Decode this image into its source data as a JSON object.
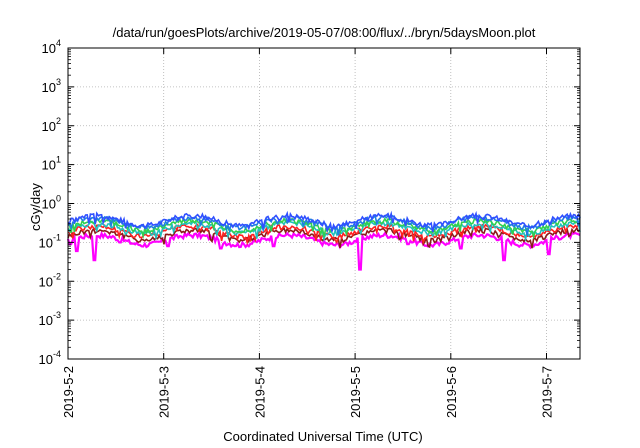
{
  "chart_data": {
    "type": "line",
    "title": "/data/run/goesPlots/archive/2019-05-07/08:00/flux/../bryn/5daysMoon.plot",
    "xlabel": "Coordinated Universal Time (UTC)",
    "ylabel": "cGy/day",
    "yscale": "log",
    "ylim": [
      0.0001,
      10000
    ],
    "xlim_days": [
      0,
      5.35
    ],
    "y_ticks": [
      {
        "base": "10",
        "exp": "-4"
      },
      {
        "base": "10",
        "exp": "-3"
      },
      {
        "base": "10",
        "exp": "-2"
      },
      {
        "base": "10",
        "exp": "-1"
      },
      {
        "base": "10",
        "exp": "0"
      },
      {
        "base": "10",
        "exp": "1"
      },
      {
        "base": "10",
        "exp": "2"
      },
      {
        "base": "10",
        "exp": "3"
      },
      {
        "base": "10",
        "exp": "4"
      }
    ],
    "x_ticks": [
      "2019-5-2",
      "2019-5-3",
      "2019-5-4",
      "2019-5-5",
      "2019-5-6",
      "2019-5-7"
    ],
    "grid": true,
    "series": [
      {
        "color": "#ff00ff",
        "base": 0.12,
        "dips": [
          [
            0.02,
            0.09
          ],
          [
            0.09,
            0.06
          ],
          [
            0.27,
            0.035
          ],
          [
            0.55,
            0.1
          ],
          [
            1.05,
            0.08
          ],
          [
            1.6,
            0.07
          ],
          [
            2.15,
            0.08
          ],
          [
            3.05,
            0.02
          ],
          [
            3.55,
            0.09
          ],
          [
            4.1,
            0.07
          ],
          [
            4.55,
            0.035
          ],
          [
            5.02,
            0.05
          ]
        ]
      },
      {
        "color": "#8b1a1a",
        "base": 0.16
      },
      {
        "color": "#ff2020",
        "base": 0.2
      },
      {
        "color": "#20c0c0",
        "base": 0.24
      },
      {
        "color": "#30d050",
        "base": 0.28
      },
      {
        "color": "#1e7fe0",
        "base": 0.34
      },
      {
        "color": "#3050ff",
        "base": 0.38
      }
    ]
  }
}
